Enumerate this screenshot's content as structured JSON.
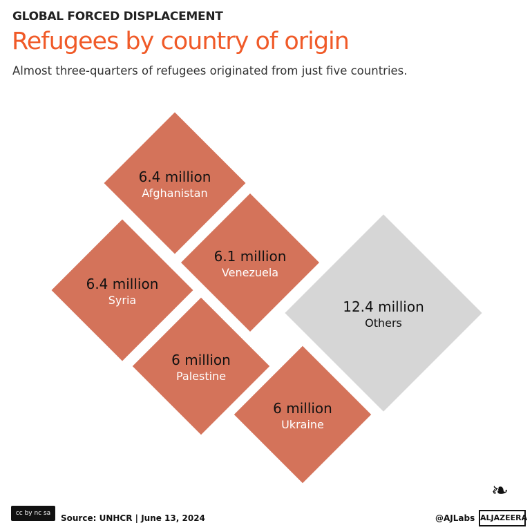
{
  "header": {
    "kicker": "GLOBAL FORCED DISPLACEMENT",
    "title": "Refugees by country of origin",
    "subtitle": "Almost three-quarters of refugees originated from just five countries."
  },
  "chart_data": {
    "type": "proportional-area (diamonds)",
    "unit": "million",
    "items": [
      {
        "label": "Afghanistan",
        "value": 6.4,
        "value_label": "6.4 million",
        "color": "#d4735a"
      },
      {
        "label": "Venezuela",
        "value": 6.1,
        "value_label": "6.1 million",
        "color": "#d4735a"
      },
      {
        "label": "Syria",
        "value": 6.4,
        "value_label": "6.4 million",
        "color": "#d4735a"
      },
      {
        "label": "Palestine",
        "value": 6,
        "value_label": "6 million",
        "color": "#d4735a"
      },
      {
        "label": "Ukraine",
        "value": 6,
        "value_label": "6 million",
        "color": "#d4735a"
      },
      {
        "label": "Others",
        "value": 12.4,
        "value_label": "12.4 million",
        "color": "#d6d6d6"
      }
    ]
  },
  "footer": {
    "license": "cc by nc sa",
    "source": "Source: UNHCR  |  June 13, 2024",
    "handle": "@AJLabs",
    "brand": "ALJAZEERA"
  }
}
